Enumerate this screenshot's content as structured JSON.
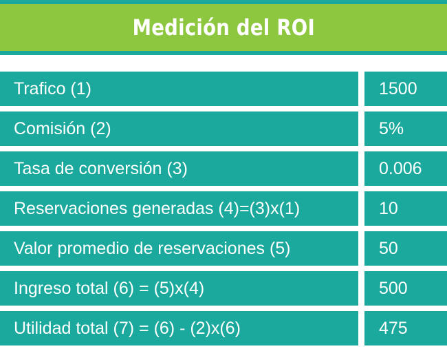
{
  "header": {
    "title": "Medición del ROI"
  },
  "rows": [
    {
      "label": "Trafico (1)",
      "value": "1500"
    },
    {
      "label": "Comisión (2)",
      "value": "5%"
    },
    {
      "label": "Tasa de conversión (3)",
      "value": "0.006"
    },
    {
      "label": "Reservaciones generadas (4)=(3)x(1)",
      "value": "10"
    },
    {
      "label": "Valor promedio de reservaciones (5)",
      "value": "50"
    },
    {
      "label": "Ingreso total (6) = (5)x(4)",
      "value": "500"
    },
    {
      "label": "Utilidad total (7) = (6) - (2)x(6)",
      "value": "475"
    }
  ],
  "colors": {
    "green": "#8dc63f",
    "teal": "#1aa99c",
    "text": "#ffffff"
  }
}
